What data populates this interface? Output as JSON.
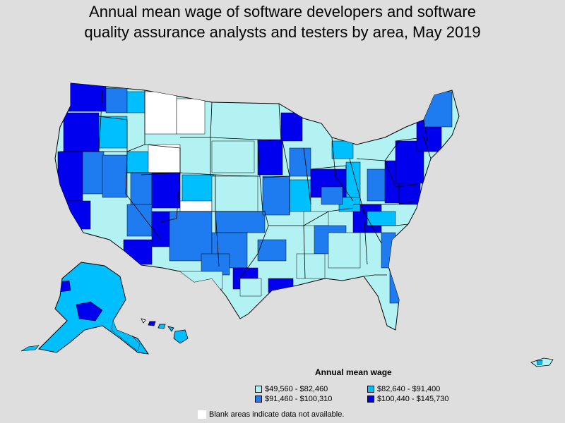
{
  "title_line1": "Annual mean wage of software developers and software",
  "title_line2": "quality assurance analysts and testers by area, May 2019",
  "legend": {
    "title": "Annual mean wage",
    "items": [
      {
        "label": "$49,560 - $82,460",
        "color": "#b3f2f2"
      },
      {
        "label": "$82,640 - $91,400",
        "color": "#00bfff"
      },
      {
        "label": "$91,460 - $100,310",
        "color": "#1e7cf0"
      },
      {
        "label": "$100,440 - $145,730",
        "color": "#0000ee"
      }
    ]
  },
  "note": "Blank areas indicate data not available.",
  "colors": {
    "background": "#dedede",
    "blank": "#ffffff",
    "border": "#000000"
  }
}
